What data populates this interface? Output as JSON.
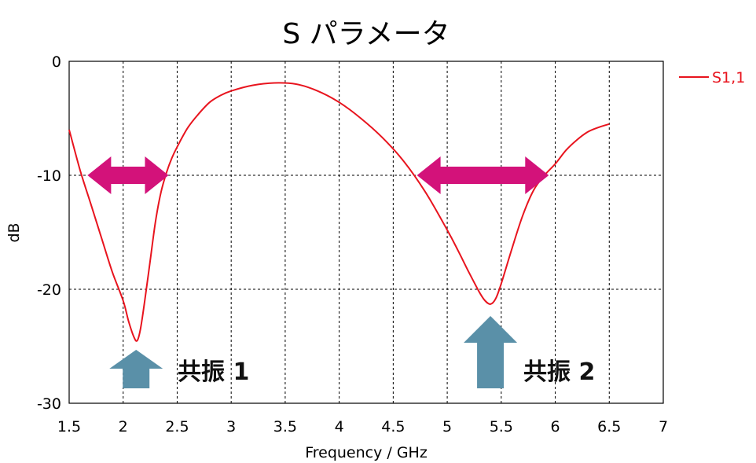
{
  "chart_data": {
    "type": "line",
    "title": "S パラメータ",
    "xlabel": "Frequency / GHz",
    "ylabel": "dB",
    "xlim": [
      1.5,
      7
    ],
    "ylim": [
      -30,
      0
    ],
    "x_ticks": [
      "1.5",
      "2",
      "2.5",
      "3",
      "3.5",
      "4",
      "4.5",
      "5",
      "5.5",
      "6",
      "6.5",
      "7"
    ],
    "y_ticks": [
      "0",
      "-10",
      "-20",
      "-30"
    ],
    "grid": true,
    "legend_position": "top-right",
    "series": [
      {
        "name": "S1,1",
        "color": "#e8141e",
        "x": [
          1.5,
          1.6,
          1.7,
          1.8,
          1.9,
          2.0,
          2.05,
          2.1,
          2.13,
          2.16,
          2.2,
          2.25,
          2.3,
          2.35,
          2.4,
          2.45,
          2.5,
          2.6,
          2.7,
          2.8,
          2.9,
          3.0,
          3.2,
          3.4,
          3.6,
          3.8,
          4.0,
          4.2,
          4.4,
          4.6,
          4.8,
          5.0,
          5.1,
          5.2,
          5.3,
          5.35,
          5.4,
          5.45,
          5.5,
          5.6,
          5.7,
          5.8,
          5.9,
          6.0,
          6.1,
          6.2,
          6.3,
          6.4,
          6.5
        ],
        "y": [
          -6.0,
          -9.5,
          -12.5,
          -15.5,
          -18.5,
          -21.0,
          -22.8,
          -24.2,
          -24.5,
          -23.5,
          -21.0,
          -17.5,
          -14.0,
          -11.5,
          -9.8,
          -8.5,
          -7.5,
          -5.8,
          -4.6,
          -3.6,
          -3.0,
          -2.6,
          -2.1,
          -1.9,
          -2.0,
          -2.6,
          -3.6,
          -5.0,
          -6.7,
          -8.8,
          -11.5,
          -14.8,
          -16.6,
          -18.5,
          -20.3,
          -21.0,
          -21.3,
          -20.8,
          -19.5,
          -16.4,
          -13.5,
          -11.3,
          -10.0,
          -9.0,
          -7.8,
          -6.9,
          -6.2,
          -5.8,
          -5.5
        ]
      }
    ],
    "annotations": [
      {
        "text": "共振 1",
        "x": 2.12,
        "y": -27.5
      },
      {
        "text": "共振 2",
        "x": 5.4,
        "y": -27.5
      }
    ],
    "arrow_color_span": "#d3127a",
    "arrow_color_up": "#5a90a8"
  }
}
